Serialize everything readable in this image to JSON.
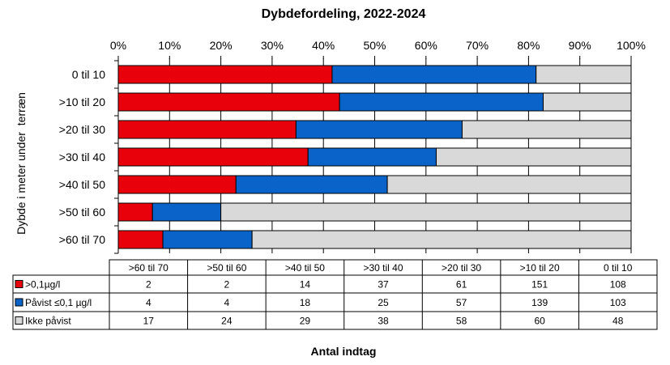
{
  "chart_data": {
    "type": "bar",
    "orientation": "horizontal",
    "stacked": "percent",
    "title": "Dybdefordeling, 2022-2024",
    "ylabel": "Dybde i meter under  terræn",
    "xlabel": "Antal indtag",
    "x_ticks": [
      "0%",
      "10%",
      "20%",
      "30%",
      "40%",
      "50%",
      "60%",
      "70%",
      "80%",
      "90%",
      "100%"
    ],
    "xlim": [
      0,
      100
    ],
    "grid": true,
    "categories": [
      "0 til 10",
      ">10 til 20",
      ">20 til 30",
      ">30 til 40",
      ">40 til 50",
      ">50 til 60",
      ">60 til 70"
    ],
    "table_columns": [
      ">60 til 70",
      ">50 til 60",
      ">40 til 50",
      ">30 til 40",
      ">20 til 30",
      ">10 til 20",
      "0 til 10"
    ],
    "series": [
      {
        "name": ">0,1µg/l",
        "color": "#e8000b",
        "values": [
          108,
          151,
          61,
          37,
          14,
          2,
          2
        ],
        "table_values": [
          "2",
          "2",
          "14",
          "37",
          "61",
          "151",
          "108"
        ]
      },
      {
        "name": "Påvist ≤0,1 µg/l",
        "color": "#0a63c8",
        "values": [
          103,
          139,
          57,
          25,
          18,
          4,
          4
        ],
        "table_values": [
          "4",
          "4",
          "18",
          "25",
          "57",
          "139",
          "103"
        ]
      },
      {
        "name": "Ikke påvist",
        "color": "#d9d9d9",
        "values": [
          48,
          60,
          58,
          38,
          29,
          24,
          17
        ],
        "table_values": [
          "17",
          "24",
          "29",
          "38",
          "58",
          "60",
          "48"
        ]
      }
    ]
  }
}
